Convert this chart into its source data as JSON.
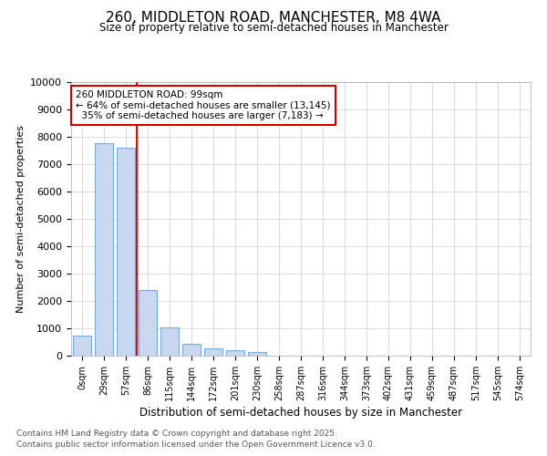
{
  "title": "260, MIDDLETON ROAD, MANCHESTER, M8 4WA",
  "subtitle": "Size of property relative to semi-detached houses in Manchester",
  "xlabel": "Distribution of semi-detached houses by size in Manchester",
  "ylabel": "Number of semi-detached properties",
  "categories": [
    "0sqm",
    "29sqm",
    "57sqm",
    "86sqm",
    "115sqm",
    "144sqm",
    "172sqm",
    "201sqm",
    "230sqm",
    "258sqm",
    "287sqm",
    "316sqm",
    "344sqm",
    "373sqm",
    "402sqm",
    "431sqm",
    "459sqm",
    "487sqm",
    "517sqm",
    "545sqm",
    "574sqm"
  ],
  "values": [
    750,
    7750,
    7600,
    2400,
    1050,
    430,
    270,
    200,
    150,
    0,
    0,
    0,
    0,
    0,
    0,
    0,
    0,
    0,
    0,
    0,
    0
  ],
  "bar_color": "#c8d8ee",
  "bar_edge_color": "#7aaadd",
  "property_size": "99sqm",
  "pct_smaller": 64,
  "num_smaller": 13145,
  "pct_larger": 35,
  "num_larger": 7183,
  "annotation_box_color": "#cc0000",
  "red_line_x": 2.5,
  "ylim": [
    0,
    10000
  ],
  "yticks": [
    0,
    1000,
    2000,
    3000,
    4000,
    5000,
    6000,
    7000,
    8000,
    9000,
    10000
  ],
  "footnote1": "Contains HM Land Registry data © Crown copyright and database right 2025.",
  "footnote2": "Contains public sector information licensed under the Open Government Licence v3.0.",
  "background_color": "#ffffff",
  "grid_color": "#cccccc"
}
